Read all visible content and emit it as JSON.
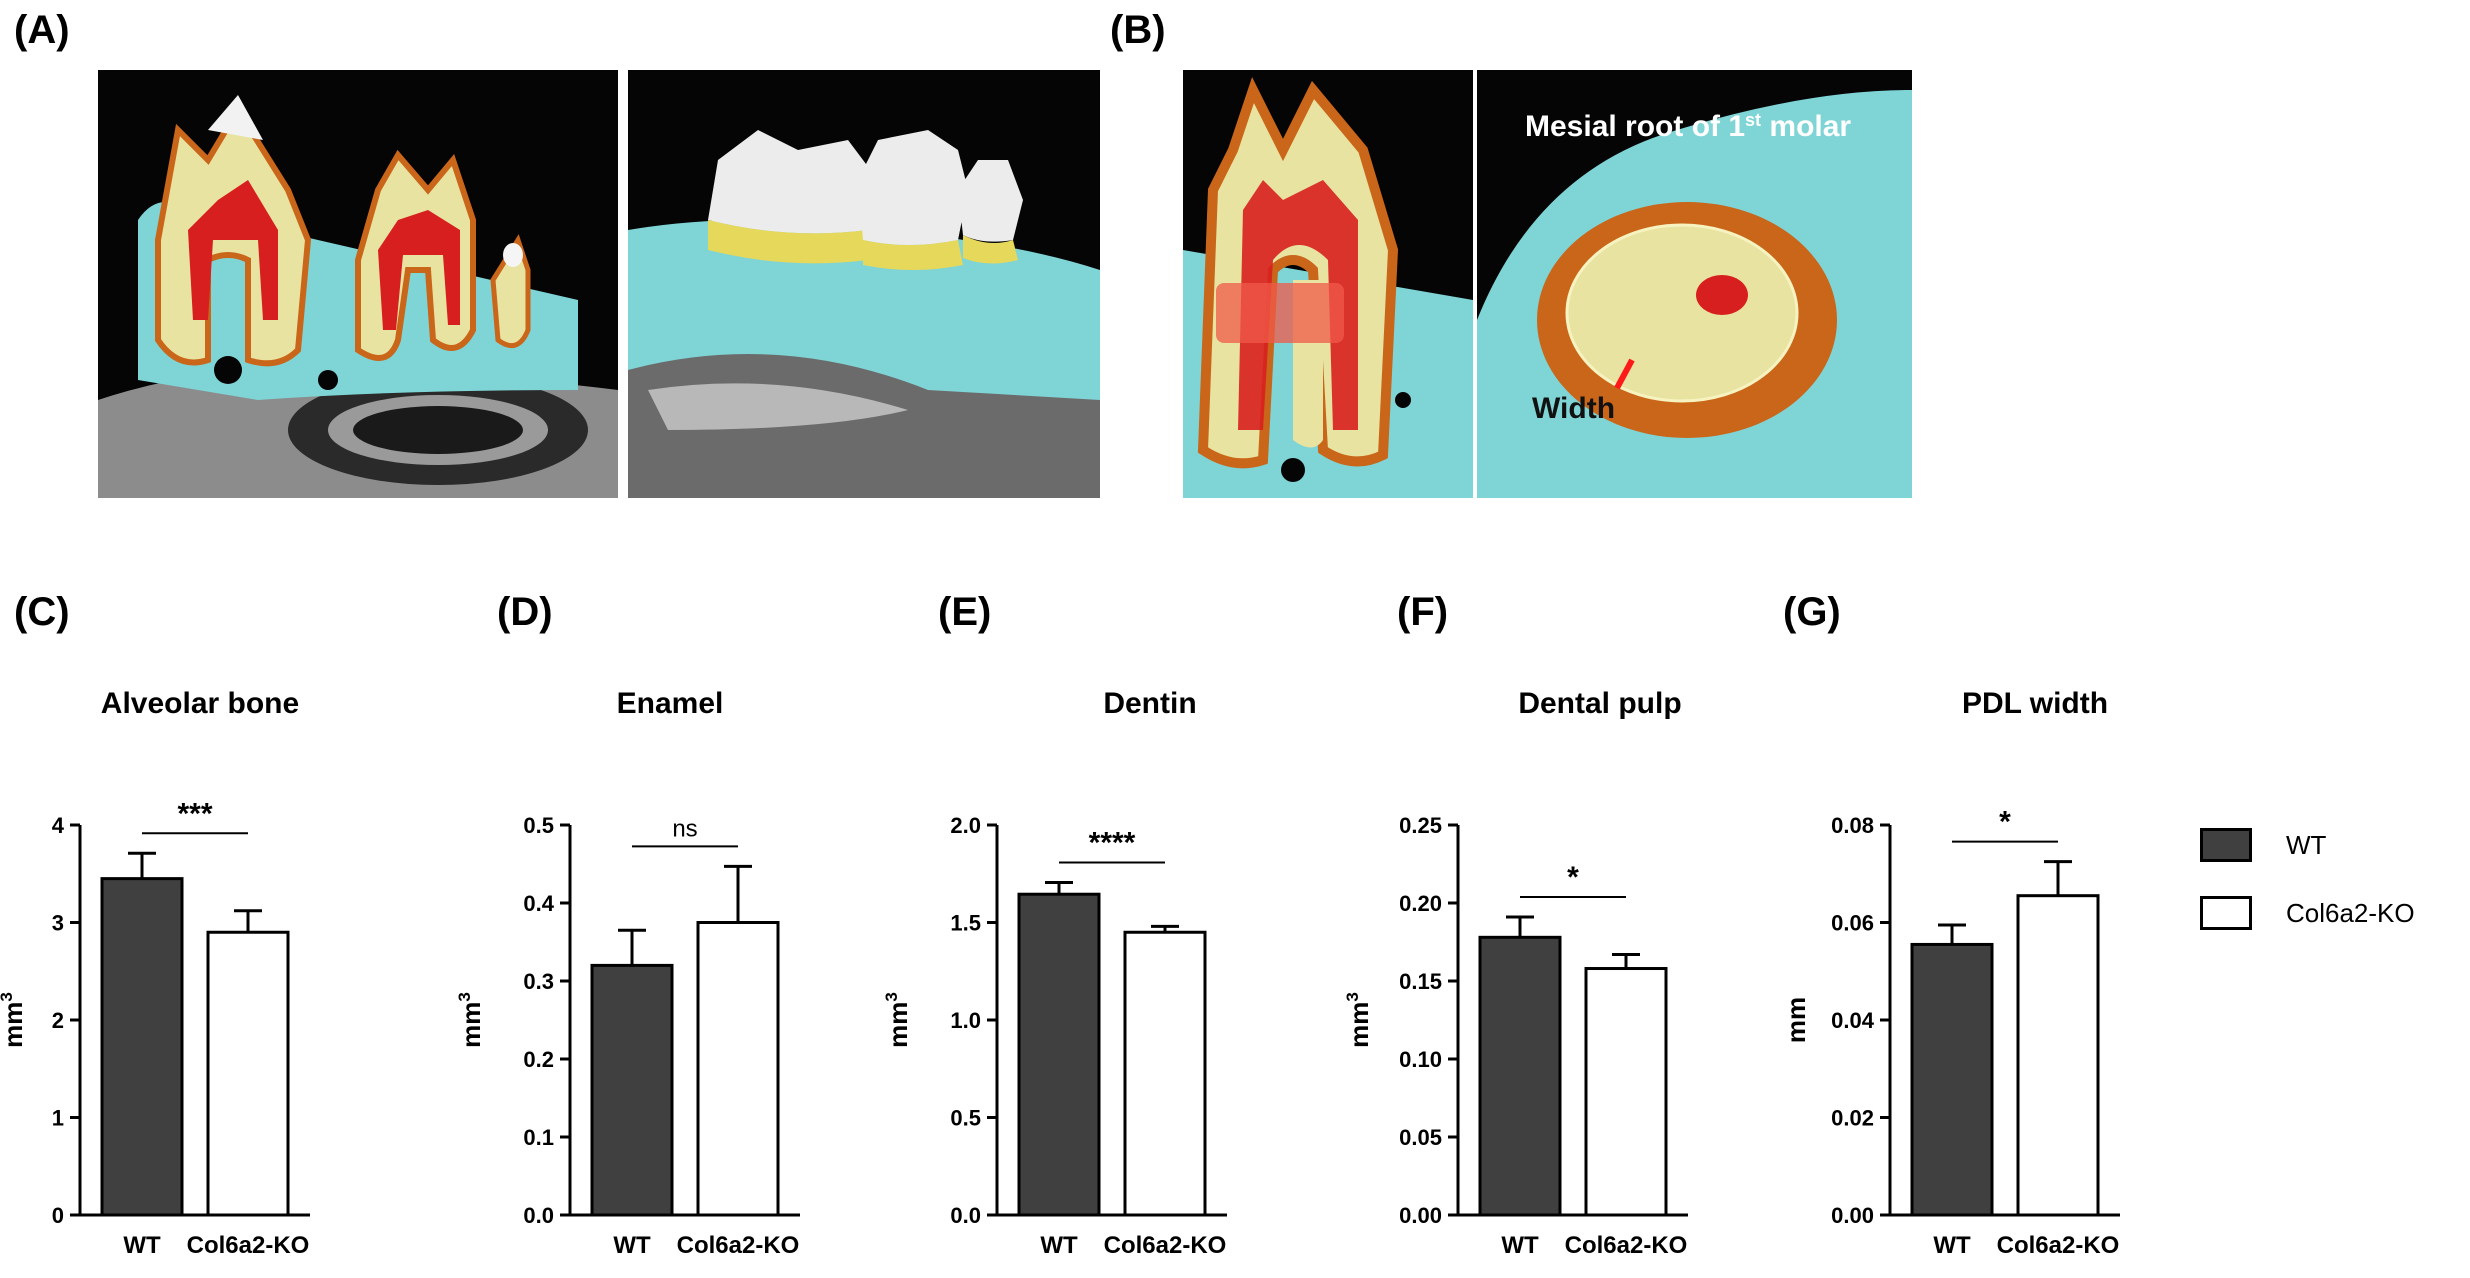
{
  "panels": {
    "a": "(A)",
    "b": "(B)",
    "c": "(C)",
    "d": "(D)",
    "e": "(E)",
    "f": "(F)",
    "g": "(G)"
  },
  "panel_b": {
    "overlay_title": "Mesial root of 1",
    "overlay_title_sup": "st",
    "overlay_title_end": " molar",
    "width_label": "Width"
  },
  "legend": {
    "items": [
      {
        "label": "WT",
        "color": "#404040"
      },
      {
        "label": "Col6a2-KO",
        "color": "#ffffff"
      }
    ]
  },
  "colors": {
    "wt": "#404040",
    "ko": "#ffffff",
    "bone": "#7fd4d6",
    "dentin": "#e8e3a0",
    "pulp": "#d81f1f",
    "pdl": "#c9661a"
  },
  "chart_data": [
    {
      "type": "bar",
      "title": "Alveolar bone",
      "categories": [
        "WT",
        "Col6a2-KO"
      ],
      "values": [
        3.45,
        2.9
      ],
      "errors": [
        0.26,
        0.22
      ],
      "ylabel": "mm",
      "ylabel_sup": "3",
      "ylim": [
        0,
        4
      ],
      "yticks": [
        "0",
        "1",
        "2",
        "3",
        "4"
      ],
      "significance": "***"
    },
    {
      "type": "bar",
      "title": "Enamel",
      "categories": [
        "WT",
        "Col6a2-KO"
      ],
      "values": [
        0.32,
        0.375
      ],
      "errors": [
        0.045,
        0.072
      ],
      "ylabel": "mm",
      "ylabel_sup": "3",
      "ylim": [
        0,
        0.5
      ],
      "yticks": [
        "0.0",
        "0.1",
        "0.2",
        "0.3",
        "0.4",
        "0.5"
      ],
      "significance": "ns"
    },
    {
      "type": "bar",
      "title": "Dentin",
      "categories": [
        "WT",
        "Col6a2-KO"
      ],
      "values": [
        1.645,
        1.45
      ],
      "errors": [
        0.06,
        0.03
      ],
      "ylabel": "mm",
      "ylabel_sup": "3",
      "ylim": [
        0,
        2.0
      ],
      "yticks": [
        "0.0",
        "0.5",
        "1.0",
        "1.5",
        "2.0"
      ],
      "significance": "****"
    },
    {
      "type": "bar",
      "title": "Dental pulp",
      "categories": [
        "WT",
        "Col6a2-KO"
      ],
      "values": [
        0.178,
        0.158
      ],
      "errors": [
        0.013,
        0.009
      ],
      "ylabel": "mm",
      "ylabel_sup": "3",
      "ylim": [
        0,
        0.25
      ],
      "yticks": [
        "0.00",
        "0.05",
        "0.10",
        "0.15",
        "0.20",
        "0.25"
      ],
      "significance": "*"
    },
    {
      "type": "bar",
      "title": "PDL width",
      "categories": [
        "WT",
        "Col6a2-KO"
      ],
      "values": [
        0.0555,
        0.0655
      ],
      "errors": [
        0.004,
        0.007
      ],
      "ylabel": "mm",
      "ylabel_sup": "",
      "ylim": [
        0,
        0.08
      ],
      "yticks": [
        "0.00",
        "0.02",
        "0.04",
        "0.06",
        "0.08"
      ],
      "significance": "*"
    }
  ]
}
